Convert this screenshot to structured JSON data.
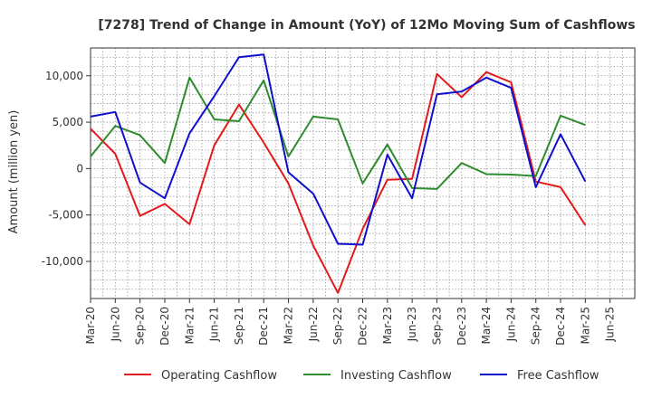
{
  "chart_data": {
    "type": "line",
    "title": "[7278]  Trend of Change in Amount (YoY) of 12Mo Moving Sum of Cashflows",
    "ylabel": "Amount (million yen)",
    "xlabel": "",
    "ylim": [
      -14000,
      13000
    ],
    "yticks": [
      10000,
      5000,
      0,
      -5000,
      -10000
    ],
    "ytick_labels": [
      "10,000",
      "5,000",
      "0",
      "-5,000",
      "-10,000"
    ],
    "grid": true,
    "legend_position": "bottom",
    "categories": [
      "Mar-20",
      "Jun-20",
      "Sep-20",
      "Dec-20",
      "Mar-21",
      "Jun-21",
      "Sep-21",
      "Dec-21",
      "Mar-22",
      "Jun-22",
      "Sep-22",
      "Dec-22",
      "Mar-23",
      "Jun-23",
      "Sep-23",
      "Dec-23",
      "Mar-24",
      "Jun-24",
      "Sep-24",
      "Dec-24",
      "Mar-25",
      "Jun-25"
    ],
    "series": [
      {
        "name": "Operating Cashflow",
        "color": "#e31a1c",
        "values": [
          4300,
          1600,
          -5100,
          -3800,
          -6000,
          2500,
          6900,
          2800,
          -1600,
          -8300,
          -13400,
          -6500,
          -1200,
          -1100,
          10200,
          7700,
          10400,
          9300,
          -1400,
          -2000,
          -6100,
          null
        ]
      },
      {
        "name": "Investing Cashflow",
        "color": "#2e8b2e",
        "values": [
          1300,
          4600,
          3600,
          600,
          9800,
          5300,
          5100,
          9500,
          1300,
          5600,
          5300,
          -1600,
          2600,
          -2100,
          -2200,
          600,
          -600,
          -650,
          -800,
          5700,
          4700,
          null
        ]
      },
      {
        "name": "Free Cashflow",
        "color": "#1010cc",
        "values": [
          5600,
          6100,
          -1500,
          -3200,
          3800,
          7800,
          12000,
          12300,
          -400,
          -2700,
          -8100,
          -8200,
          1500,
          -3200,
          8000,
          8300,
          9800,
          8700,
          -2000,
          3700,
          -1400,
          null
        ]
      }
    ]
  }
}
